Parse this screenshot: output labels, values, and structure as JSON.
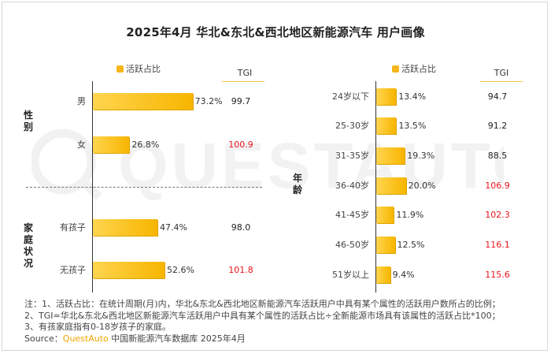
{
  "title": "2025年4月 华北&东北&西北地区新能源汽车 用户画像",
  "legend_label": "活跃占比",
  "tgi_header": "TGI",
  "watermark_text": "QUESTAUTO",
  "left_groups": [
    {
      "label": "性别",
      "chars": [
        "性",
        "别"
      ]
    },
    {
      "label": "家庭状况",
      "chars": [
        "家",
        "庭",
        "状",
        "况"
      ]
    }
  ],
  "right_group": {
    "label": "年龄",
    "chars": [
      "年",
      "龄"
    ]
  },
  "chart_data": [
    {
      "type": "bar",
      "orientation": "horizontal",
      "section": "性别 / 家庭状况",
      "series_label": "活跃占比",
      "categories": [
        "男",
        "女",
        "有孩子",
        "无孩子"
      ],
      "values": [
        73.2,
        26.8,
        47.4,
        52.6
      ],
      "value_labels": [
        "73.2%",
        "26.8%",
        "47.4%",
        "52.6%"
      ],
      "tgi": [
        "99.7",
        "100.9",
        "98.0",
        "101.8"
      ],
      "tgi_highlight": [
        false,
        true,
        false,
        true
      ]
    },
    {
      "type": "bar",
      "orientation": "horizontal",
      "section": "年龄",
      "series_label": "活跃占比",
      "categories": [
        "24岁以下",
        "25-30岁",
        "31-35岁",
        "36-40岁",
        "41-45岁",
        "46-50岁",
        "51岁以上"
      ],
      "values": [
        13.4,
        13.5,
        19.3,
        20.0,
        11.9,
        12.5,
        9.4
      ],
      "value_labels": [
        "13.4%",
        "13.5%",
        "19.3%",
        "20.0%",
        "11.9%",
        "12.5%",
        "9.4%"
      ],
      "tgi": [
        "94.7",
        "91.2",
        "88.5",
        "106.9",
        "102.3",
        "116.1",
        "115.6"
      ],
      "tgi_highlight": [
        false,
        false,
        false,
        true,
        true,
        true,
        true
      ]
    }
  ],
  "notes": [
    "注：1、活跃占比：在统计周期(月)内，华北&东北&西北地区新能源汽车活跃用户中具有某个属性的活跃用户数所占的比例；",
    "2、TGI=华北&东北&西北地区新能源汽车活跃用户中具有某个属性的活跃占比÷全新能源市场具有该属性的活跃占比*100；",
    "3、有孩家庭指有0-18岁孩子的家庭。"
  ],
  "source": {
    "prefix": "Source：",
    "brand": "QuestAuto",
    "suffix": " 中国新能源汽车数据库 2025年4月"
  },
  "colors": {
    "bar": "#f7b500",
    "bar_light": "#ffd54f",
    "tgi_high": "#e8141c",
    "tgi_normal": "#222222"
  }
}
